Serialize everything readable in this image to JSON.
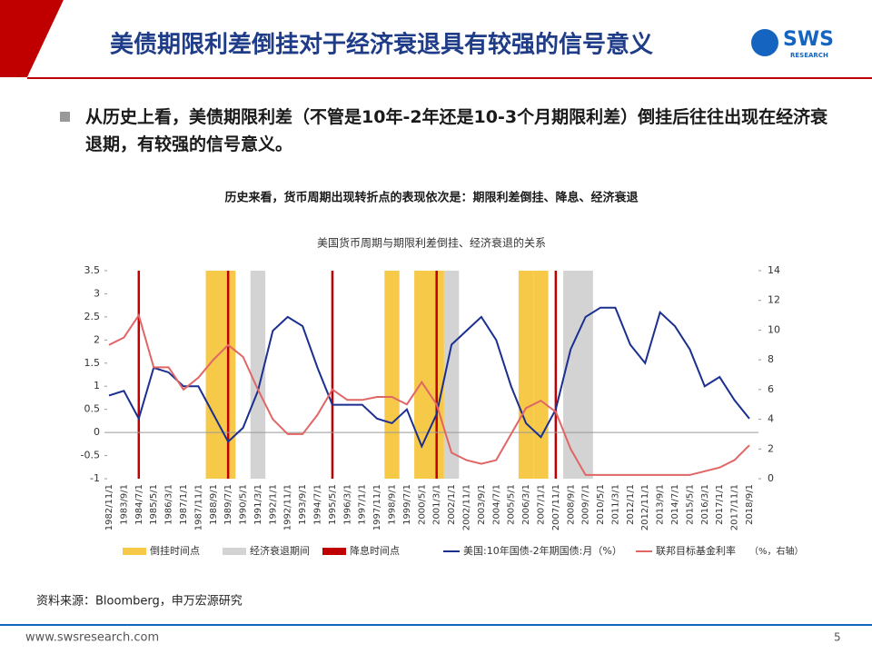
{
  "header": {
    "title": "美债期限利差倒挂对于经济衰退具有较强的信号意义",
    "logo": "SWS",
    "logo_sub": "RESEARCH"
  },
  "bullet": "从历史上看，美债期限利差（不管是10年-2年还是10-3个月期限利差）倒挂后往往出现在经济衰退期，有较强的信号意义。",
  "chart_data": {
    "type": "line",
    "subtitle": "历史来看，货币周期出现转折点的表现依次是：期限利差倒挂、降息、经济衰退",
    "title": "美国货币周期与期限利差倒挂、经济衰退的关系",
    "categories": [
      "1982/11/1",
      "1983/9/1",
      "1984/7/1",
      "1985/5/1",
      "1986/3/1",
      "1987/1/1",
      "1987/11/1",
      "1988/9/1",
      "1989/7/1",
      "1990/5/1",
      "1991/3/1",
      "1992/1/1",
      "1992/11/1",
      "1993/9/1",
      "1994/7/1",
      "1995/5/1",
      "1996/3/1",
      "1997/1/1",
      "1997/11/1",
      "1998/9/1",
      "1999/7/1",
      "2000/5/1",
      "2001/3/1",
      "2002/1/1",
      "2002/11/1",
      "2003/9/1",
      "2004/7/1",
      "2005/5/1",
      "2006/3/1",
      "2007/1/1",
      "2007/11/1",
      "2008/9/1",
      "2009/7/1",
      "2010/5/1",
      "2011/3/1",
      "2012/1/1",
      "2012/11/1",
      "2013/9/1",
      "2014/7/1",
      "2015/5/1",
      "2016/3/1",
      "2017/1/1",
      "2017/11/1",
      "2018/9/1"
    ],
    "series": [
      {
        "name": "美国:10年国债-2年期国债:月（%）",
        "color": "#1a2f8f",
        "values": [
          0.8,
          0.9,
          0.3,
          1.4,
          1.3,
          1.0,
          1.0,
          0.4,
          -0.2,
          0.1,
          0.9,
          2.2,
          2.5,
          2.3,
          1.4,
          0.6,
          0.6,
          0.6,
          0.3,
          0.2,
          0.5,
          -0.3,
          0.4,
          1.9,
          2.2,
          2.5,
          2.0,
          1.0,
          0.2,
          -0.1,
          0.5,
          1.8,
          2.5,
          2.7,
          2.7,
          1.9,
          1.5,
          2.6,
          2.3,
          1.8,
          1.0,
          1.2,
          0.7,
          0.3
        ]
      },
      {
        "name": "联邦目标基金利率",
        "color": "#e06666",
        "axis": "y2",
        "values": [
          9,
          9.5,
          11,
          7.5,
          7.5,
          6,
          6.8,
          8,
          9,
          8.2,
          6,
          4,
          3,
          3,
          4.3,
          6,
          5.3,
          5.3,
          5.5,
          5.5,
          5,
          6.5,
          5,
          1.75,
          1.25,
          1,
          1.25,
          3,
          4.75,
          5.25,
          4.5,
          2,
          0.25,
          0.25,
          0.25,
          0.25,
          0.25,
          0.25,
          0.25,
          0.25,
          0.5,
          0.75,
          1.25,
          2.25
        ]
      }
    ],
    "periods": [
      {
        "name": "倒挂时间点",
        "color": "#f7c948",
        "ranges": [
          [
            "1988/9/1",
            "1989/7/1"
          ],
          [
            "1998/9/1",
            "1998/9/1"
          ],
          [
            "2000/5/1",
            "2001/3/1"
          ],
          [
            "2006/3/1",
            "2006/3/1"
          ],
          [
            "2007/1/1",
            "2007/1/1"
          ]
        ]
      },
      {
        "name": "经济衰退期间",
        "color": "#d3d3d3",
        "ranges": [
          [
            "1991/3/1",
            "1991/3/1"
          ],
          [
            "2002/1/1",
            "2002/1/1"
          ],
          [
            "2008/9/1",
            "2009/7/1"
          ]
        ]
      }
    ],
    "rate_cuts": {
      "name": "降息时间点",
      "color": "#c00000",
      "dates": [
        "1984/7/1",
        "1989/7/1",
        "1995/5/1",
        "2001/3/1",
        "2007/11/1"
      ]
    },
    "ylim": [
      -1,
      3.5
    ],
    "yticks": [
      -1,
      -0.5,
      0,
      0.5,
      1,
      1.5,
      2,
      2.5,
      3,
      3.5
    ],
    "y2lim": [
      0,
      14
    ],
    "y2ticks": [
      0,
      2,
      4,
      6,
      8,
      10,
      12,
      14
    ],
    "y2label": "（%，右轴）"
  },
  "source": "资料来源：Bloomberg，申万宏源研究",
  "footer": {
    "url": "www.swsresearch.com",
    "page": "5"
  }
}
